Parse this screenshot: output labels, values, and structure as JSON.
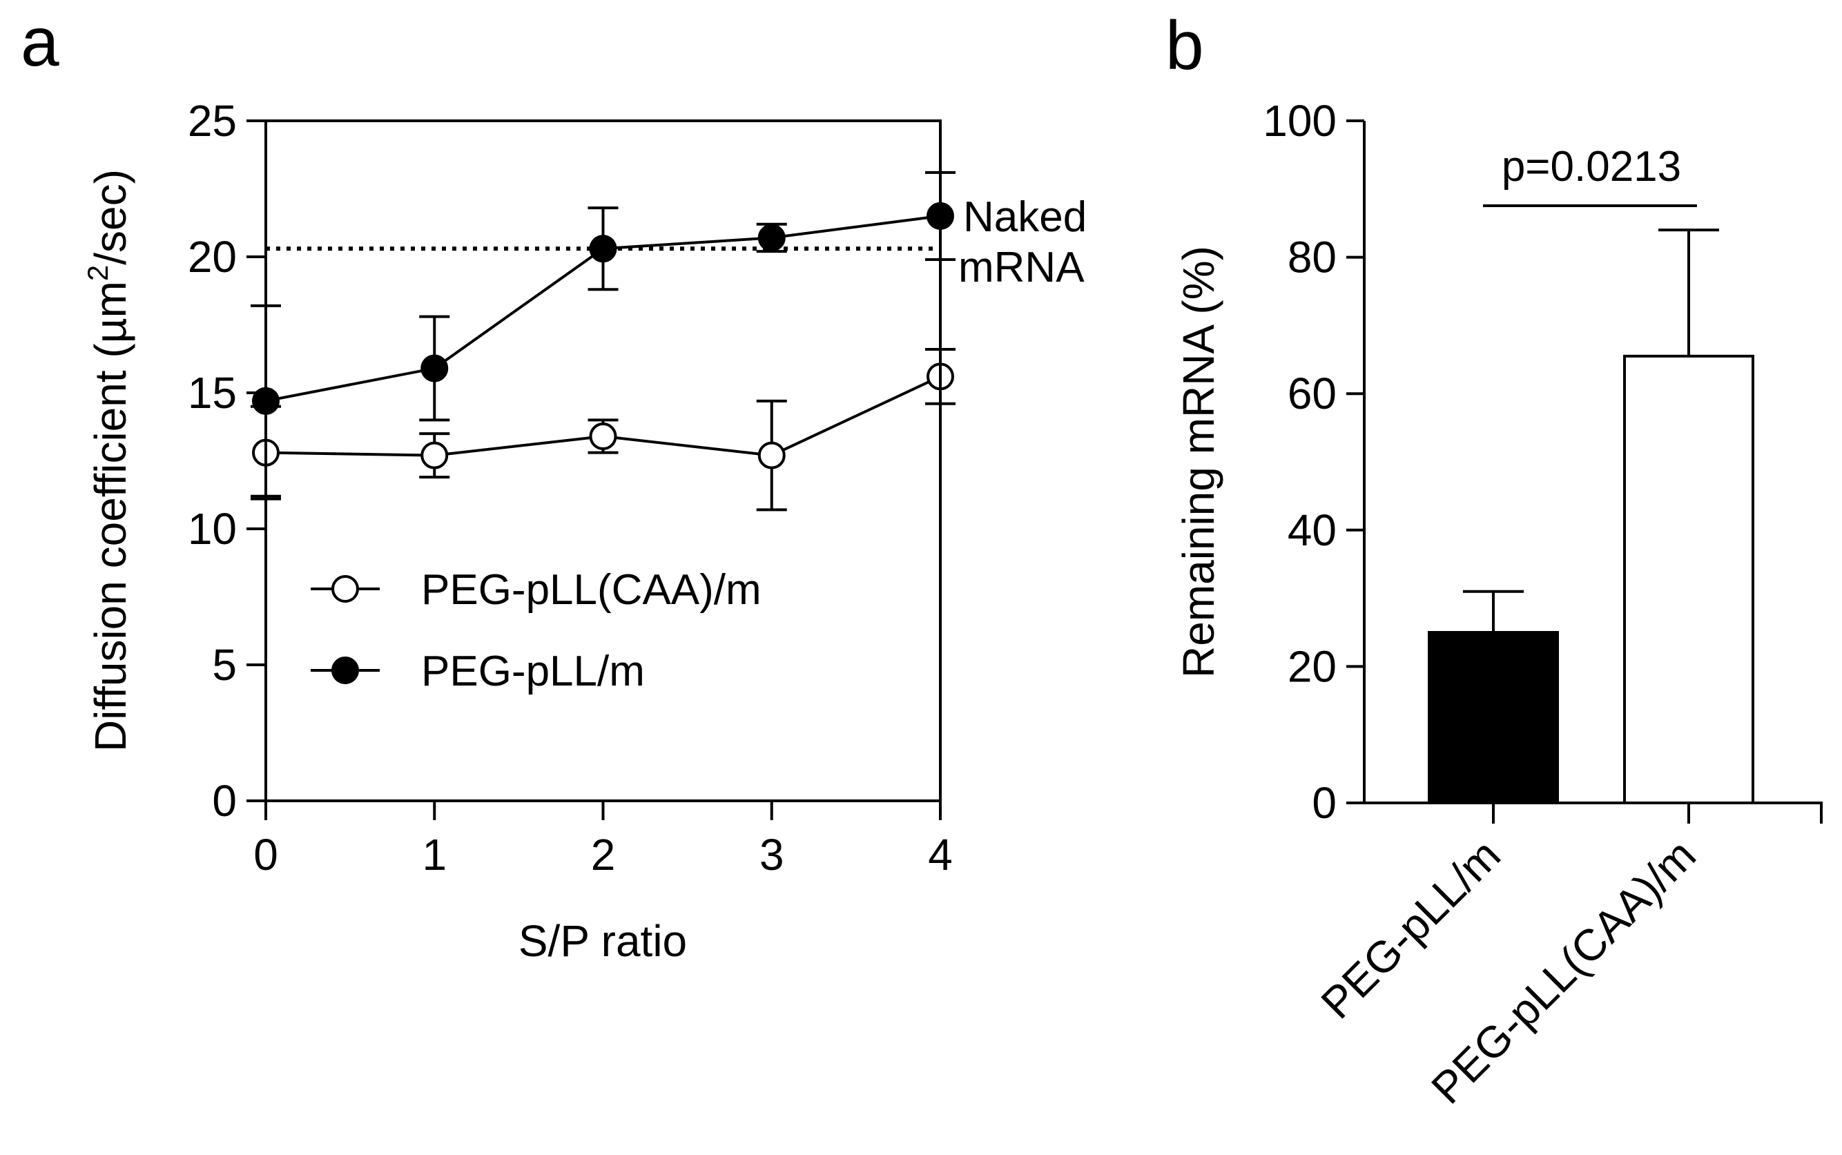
{
  "chart_data": [
    {
      "panel": "a",
      "type": "line",
      "xlabel": "S/P ratio",
      "ylabel_main": "Diffusion coefficient (µm",
      "ylabel_sup": "2",
      "ylabel_tail": "/sec)",
      "xlim": [
        0,
        4
      ],
      "ylim": [
        0,
        25
      ],
      "x_ticks": [
        0,
        1,
        2,
        3,
        4
      ],
      "y_ticks": [
        0,
        5,
        10,
        15,
        20,
        25
      ],
      "x": [
        0,
        1,
        2,
        3,
        4
      ],
      "series": [
        {
          "name": "PEG-pLL(CAA)/m",
          "marker": "open-circle",
          "values": [
            12.8,
            12.7,
            13.4,
            12.7,
            15.6
          ],
          "error": [
            1.7,
            0.8,
            0.6,
            2.0,
            1.0
          ]
        },
        {
          "name": "PEG-pLL/m",
          "marker": "filled-circle",
          "values": [
            14.7,
            15.9,
            20.3,
            20.7,
            21.5
          ],
          "error": [
            3.5,
            1.9,
            1.5,
            0.5,
            1.6
          ]
        }
      ],
      "reference_line": {
        "value": 20.3,
        "label_line1": "Naked",
        "label_line2": "mRNA",
        "style": "dotted"
      },
      "legend_position": "center-left"
    },
    {
      "panel": "b",
      "type": "bar",
      "ylabel": "Remaining mRNA  (%)",
      "ylim": [
        0,
        100
      ],
      "y_ticks": [
        0,
        20,
        40,
        60,
        80,
        100
      ],
      "categories": [
        "PEG-pLL/m",
        "PEG-pLL(CAA)/m"
      ],
      "values": [
        25,
        65.5
      ],
      "error": [
        6,
        18.5
      ],
      "bar_fills": [
        "#000000",
        "#ffffff"
      ],
      "annotation": "p=0.0213"
    }
  ]
}
